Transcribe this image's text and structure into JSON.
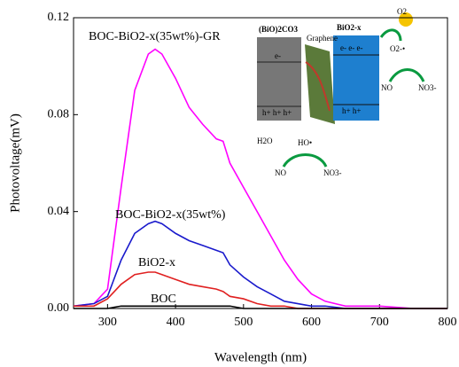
{
  "chart_data": {
    "type": "line",
    "x_label": "Wavelength (nm)",
    "y_label": "Photovoltage(mV)",
    "x": [
      250,
      280,
      300,
      320,
      340,
      360,
      370,
      380,
      400,
      420,
      440,
      460,
      470,
      480,
      500,
      520,
      540,
      560,
      580,
      600,
      620,
      650,
      700,
      750,
      800
    ],
    "series": [
      {
        "name": "BOC-BiO2-x(35wt%)-GR",
        "color": "#ff00ff",
        "values": [
          0.001,
          0.002,
          0.008,
          0.05,
          0.09,
          0.105,
          0.107,
          0.105,
          0.095,
          0.083,
          0.076,
          0.07,
          0.069,
          0.06,
          0.05,
          0.04,
          0.03,
          0.02,
          0.012,
          0.006,
          0.003,
          0.001,
          0.001,
          0,
          0
        ]
      },
      {
        "name": "BOC-BiO2-x(35wt%)",
        "color": "#1a1acc",
        "values": [
          0.001,
          0.002,
          0.005,
          0.02,
          0.031,
          0.035,
          0.036,
          0.035,
          0.031,
          0.028,
          0.026,
          0.024,
          0.023,
          0.018,
          0.013,
          0.009,
          0.006,
          0.003,
          0.002,
          0.001,
          0.001,
          0,
          0,
          0,
          0
        ]
      },
      {
        "name": "BiO2-x",
        "color": "#e02020",
        "values": [
          0.001,
          0.001,
          0.004,
          0.01,
          0.014,
          0.015,
          0.015,
          0.014,
          0.012,
          0.01,
          0.009,
          0.008,
          0.007,
          0.005,
          0.004,
          0.002,
          0.001,
          0.001,
          0,
          0,
          0,
          0,
          0,
          0,
          0
        ]
      },
      {
        "name": "BOC",
        "color": "#000000",
        "values": [
          0,
          0,
          0,
          0.001,
          0.001,
          0.001,
          0.001,
          0.001,
          0.001,
          0.001,
          0.001,
          0.001,
          0.001,
          0.001,
          0,
          0,
          0,
          0,
          0,
          0,
          0,
          0,
          0,
          0,
          0
        ]
      }
    ],
    "xlim": [
      250,
      800
    ],
    "xticks": [
      300,
      400,
      500,
      600,
      700,
      800
    ],
    "ylim": [
      0,
      0.12
    ],
    "yticks": [
      {
        "value": 0,
        "label": "0.00"
      },
      {
        "value": 0.04,
        "label": "0.04"
      },
      {
        "value": 0.08,
        "label": "0.08"
      },
      {
        "value": 0.12,
        "label": "0.12"
      }
    ]
  },
  "inset": {
    "boc": "(BiO)2CO3",
    "bio": "BiO2-x",
    "graphene": "Graphene",
    "o2": "O2",
    "o2rad": "O2-•",
    "no_top": "NO",
    "no3_top": "NO3-",
    "h2o": "H2O",
    "ho": "HO•",
    "no_bottom": "NO",
    "no3_bottom": "NO3-",
    "e_boc": "e-",
    "e_bio": "e- e- e-",
    "h_boc": "h+ h+ h+",
    "h_bio": "h+ h+"
  }
}
